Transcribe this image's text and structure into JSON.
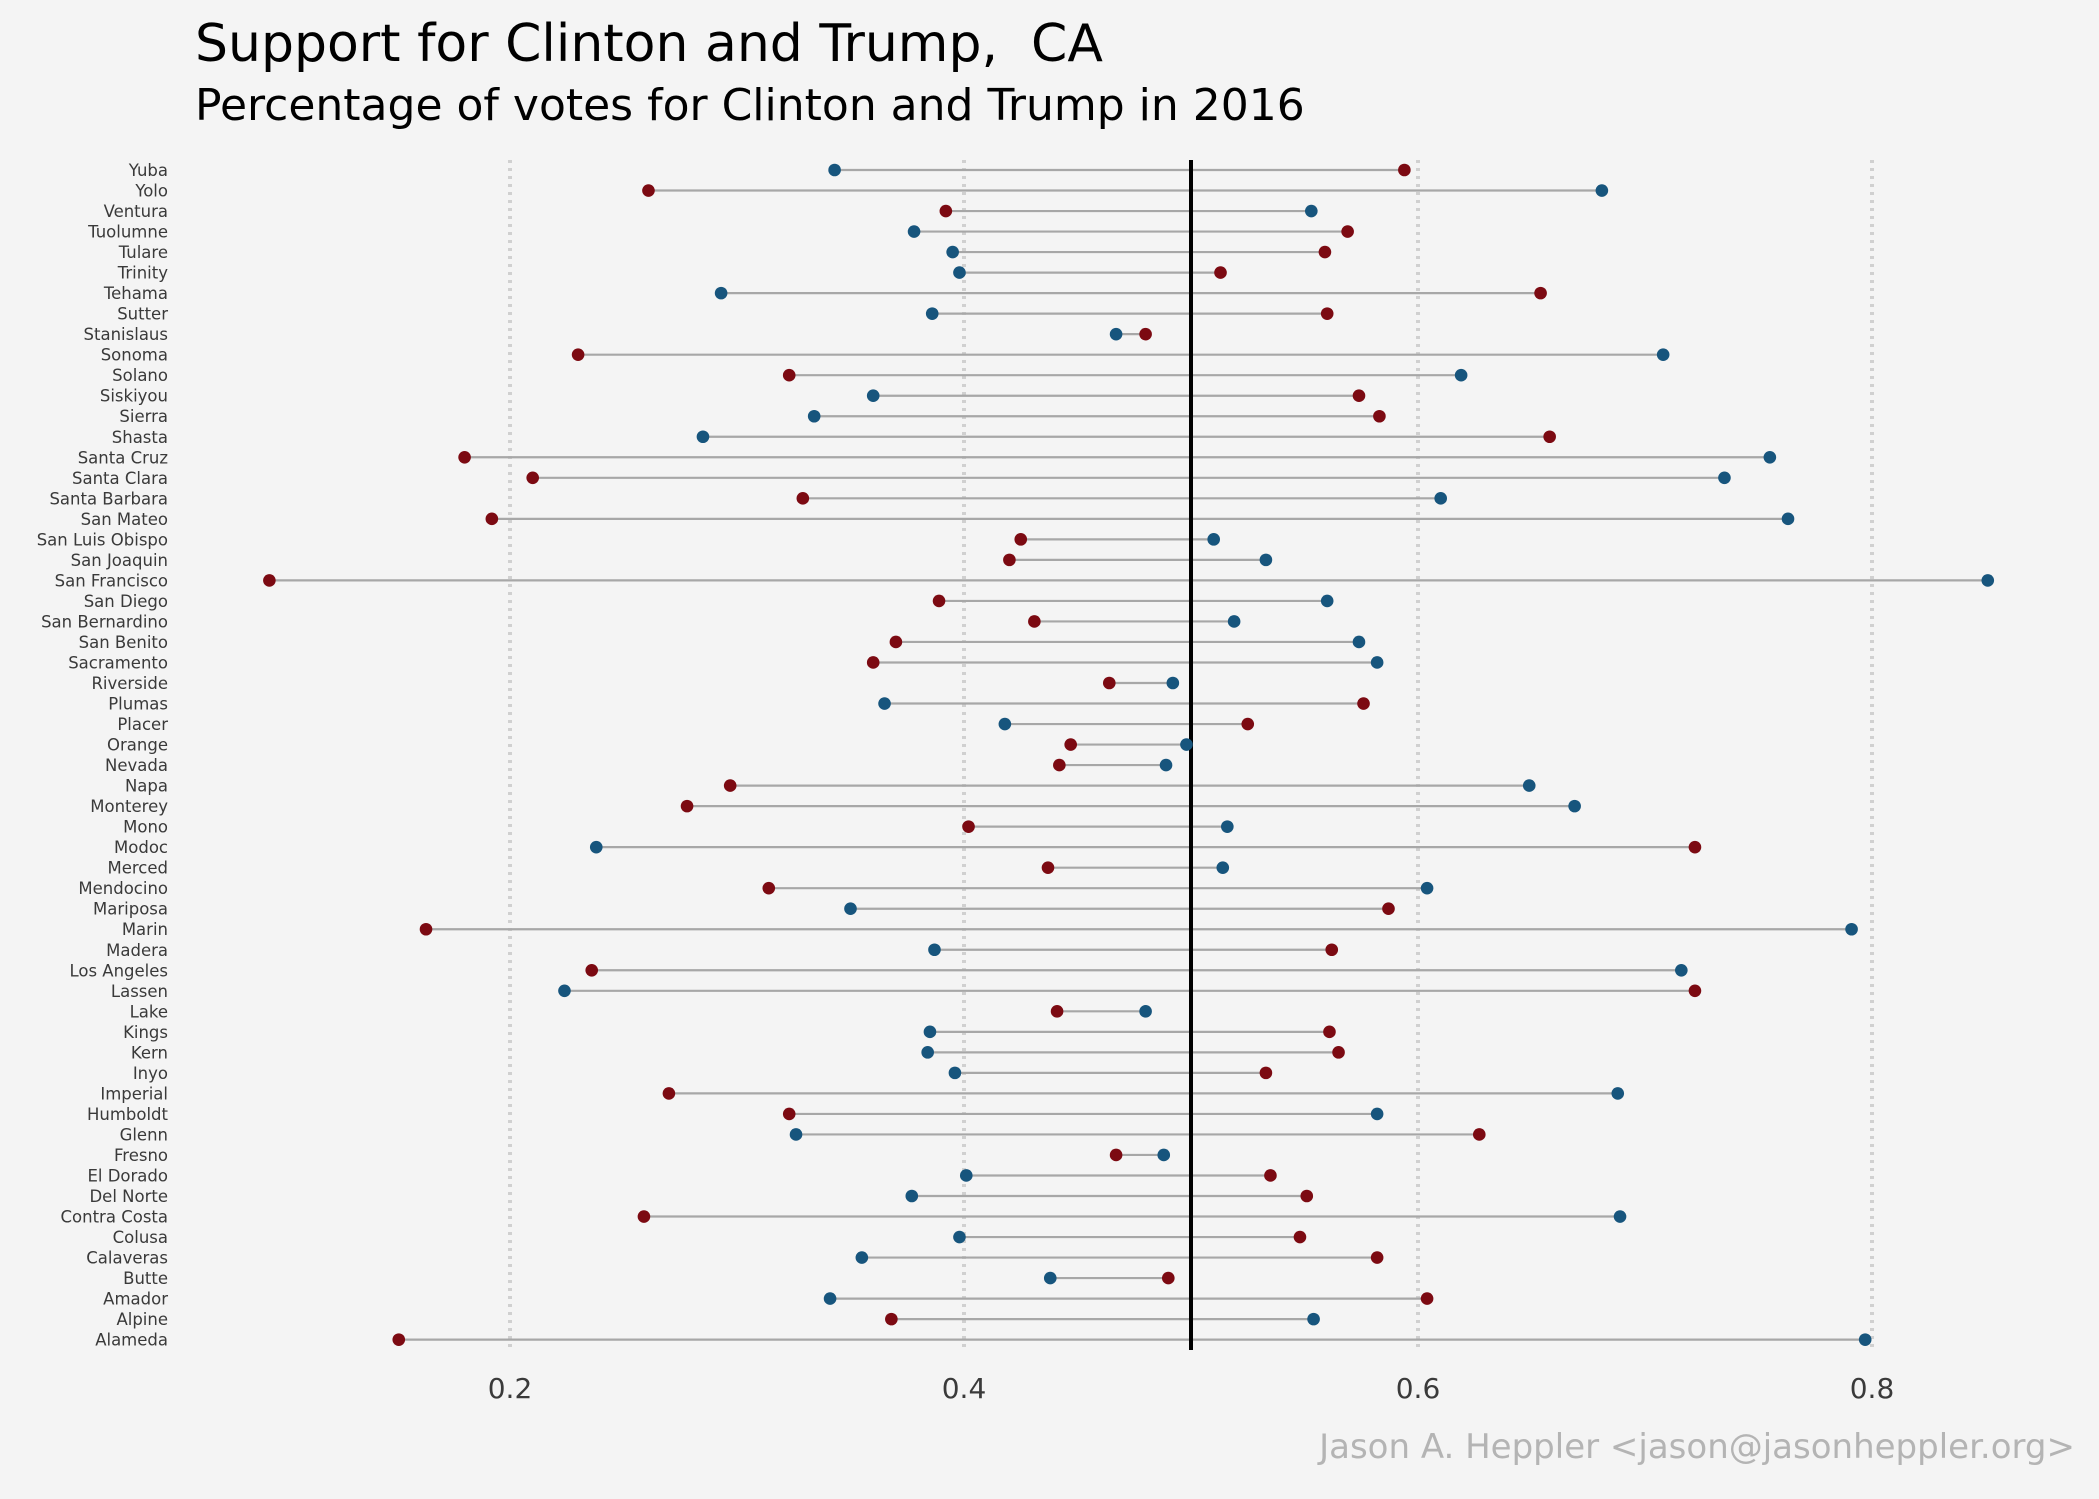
{
  "chart_data": {
    "type": "dumbbell",
    "title": "Support for Clinton and Trump,  CA",
    "subtitle": "Percentage of votes for Clinton and Trump in 2016",
    "caption": "Jason A. Heppler <jason@jasonheppler.org>",
    "xlabel": "",
    "ylabel": "",
    "xlim": [
      0.1,
      0.85
    ],
    "x_ticks": [
      0.2,
      0.4,
      0.6,
      0.8
    ],
    "x_tick_labels": [
      "0.2",
      "0.4",
      "0.6",
      "0.8"
    ],
    "reference_line": 0.5,
    "grid": "vertical dotted at x ticks",
    "colors": {
      "clinton": "#17557d",
      "trump": "#7c0a12",
      "segment": "#a7a7a7",
      "reference": "#000000",
      "grid": "#d0d0d0"
    },
    "categories": [
      "Yuba",
      "Yolo",
      "Ventura",
      "Tuolumne",
      "Tulare",
      "Trinity",
      "Tehama",
      "Sutter",
      "Stanislaus",
      "Sonoma",
      "Solano",
      "Siskiyou",
      "Sierra",
      "Shasta",
      "Santa Cruz",
      "Santa Clara",
      "Santa Barbara",
      "San Mateo",
      "San Luis Obispo",
      "San Joaquin",
      "San Francisco",
      "San Diego",
      "San Bernardino",
      "San Benito",
      "Sacramento",
      "Riverside",
      "Plumas",
      "Placer",
      "Orange",
      "Nevada",
      "Napa",
      "Monterey",
      "Mono",
      "Modoc",
      "Merced",
      "Mendocino",
      "Mariposa",
      "Marin",
      "Madera",
      "Los Angeles",
      "Lassen",
      "Lake",
      "Kings",
      "Kern",
      "Inyo",
      "Imperial",
      "Humboldt",
      "Glenn",
      "Fresno",
      "El Dorado",
      "Del Norte",
      "Contra Costa",
      "Colusa",
      "Calaveras",
      "Butte",
      "Amador",
      "Alpine",
      "Alameda"
    ],
    "series": [
      {
        "name": "Clinton",
        "values": [
          0.343,
          0.681,
          0.553,
          0.378,
          0.395,
          0.398,
          0.293,
          0.386,
          0.467,
          0.708,
          0.619,
          0.36,
          0.334,
          0.285,
          0.755,
          0.735,
          0.61,
          0.763,
          0.51,
          0.533,
          0.851,
          0.56,
          0.519,
          0.574,
          0.582,
          0.492,
          0.365,
          0.418,
          0.498,
          0.489,
          0.649,
          0.669,
          0.516,
          0.238,
          0.514,
          0.604,
          0.35,
          0.791,
          0.387,
          0.716,
          0.224,
          0.48,
          0.385,
          0.384,
          0.396,
          0.688,
          0.582,
          0.326,
          0.488,
          0.401,
          0.377,
          0.689,
          0.398,
          0.355,
          0.438,
          0.341,
          0.554,
          0.797
        ]
      },
      {
        "name": "Trump",
        "values": [
          0.594,
          0.261,
          0.392,
          0.569,
          0.559,
          0.513,
          0.654,
          0.56,
          0.48,
          0.23,
          0.323,
          0.574,
          0.583,
          0.658,
          0.18,
          0.21,
          0.329,
          0.192,
          0.425,
          0.42,
          0.094,
          0.389,
          0.431,
          0.37,
          0.36,
          0.464,
          0.576,
          0.525,
          0.447,
          0.442,
          0.297,
          0.278,
          0.402,
          0.722,
          0.437,
          0.314,
          0.587,
          0.163,
          0.562,
          0.236,
          0.722,
          0.441,
          0.561,
          0.565,
          0.533,
          0.27,
          0.323,
          0.627,
          0.467,
          0.535,
          0.551,
          0.259,
          0.548,
          0.582,
          0.49,
          0.604,
          0.368,
          0.151
        ]
      }
    ]
  }
}
